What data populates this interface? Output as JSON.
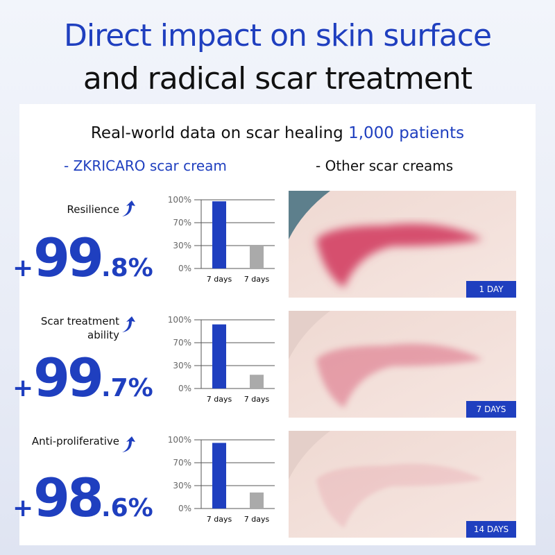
{
  "header": {
    "title_line1": "Direct impact on skin surface",
    "title_line2": "and radical scar treatment"
  },
  "subtitle": {
    "text": "Real-world data on scar healing ",
    "highlight": "1,000 patients"
  },
  "legend": {
    "ours": "- ZKRICARO scar cream",
    "others": "- Other scar creams"
  },
  "colors": {
    "accent": "#1f3fbf",
    "other": "#aaaaaa"
  },
  "metrics": [
    {
      "label": "Resilience",
      "plus": "+",
      "int": "99",
      "dec": ".8%"
    },
    {
      "label": "Scar treatment ability",
      "plus": "+",
      "int": "99",
      "dec": ".7%"
    },
    {
      "label": "Anti-proliferative",
      "plus": "+",
      "int": "98",
      "dec": ".6%"
    }
  ],
  "chart_data": [
    {
      "type": "bar",
      "categories": [
        "7 days",
        "7 days"
      ],
      "values": [
        98,
        30
      ],
      "yticks": [
        "100%",
        "70%",
        "30%",
        "0%"
      ],
      "ytick_values": [
        100,
        70,
        30,
        0
      ],
      "ylim": [
        0,
        100
      ],
      "grid": true
    },
    {
      "type": "bar",
      "categories": [
        "7 days",
        "7 days"
      ],
      "values": [
        94,
        18
      ],
      "yticks": [
        "100%",
        "70%",
        "30%",
        "0%"
      ],
      "ytick_values": [
        100,
        70,
        30,
        0
      ],
      "ylim": [
        0,
        100
      ],
      "grid": true
    },
    {
      "type": "bar",
      "categories": [
        "7 days",
        "7 days"
      ],
      "values": [
        96,
        21
      ],
      "yticks": [
        "100%",
        "70%",
        "30%",
        "0%"
      ],
      "ytick_values": [
        100,
        70,
        30,
        0
      ],
      "ylim": [
        0,
        100
      ],
      "grid": true
    }
  ],
  "photos": [
    {
      "tag": "1 DAY",
      "intensity": 1
    },
    {
      "tag": "7 DAYS",
      "intensity": 0.45
    },
    {
      "tag": "14 DAYS",
      "intensity": 0.15
    }
  ]
}
